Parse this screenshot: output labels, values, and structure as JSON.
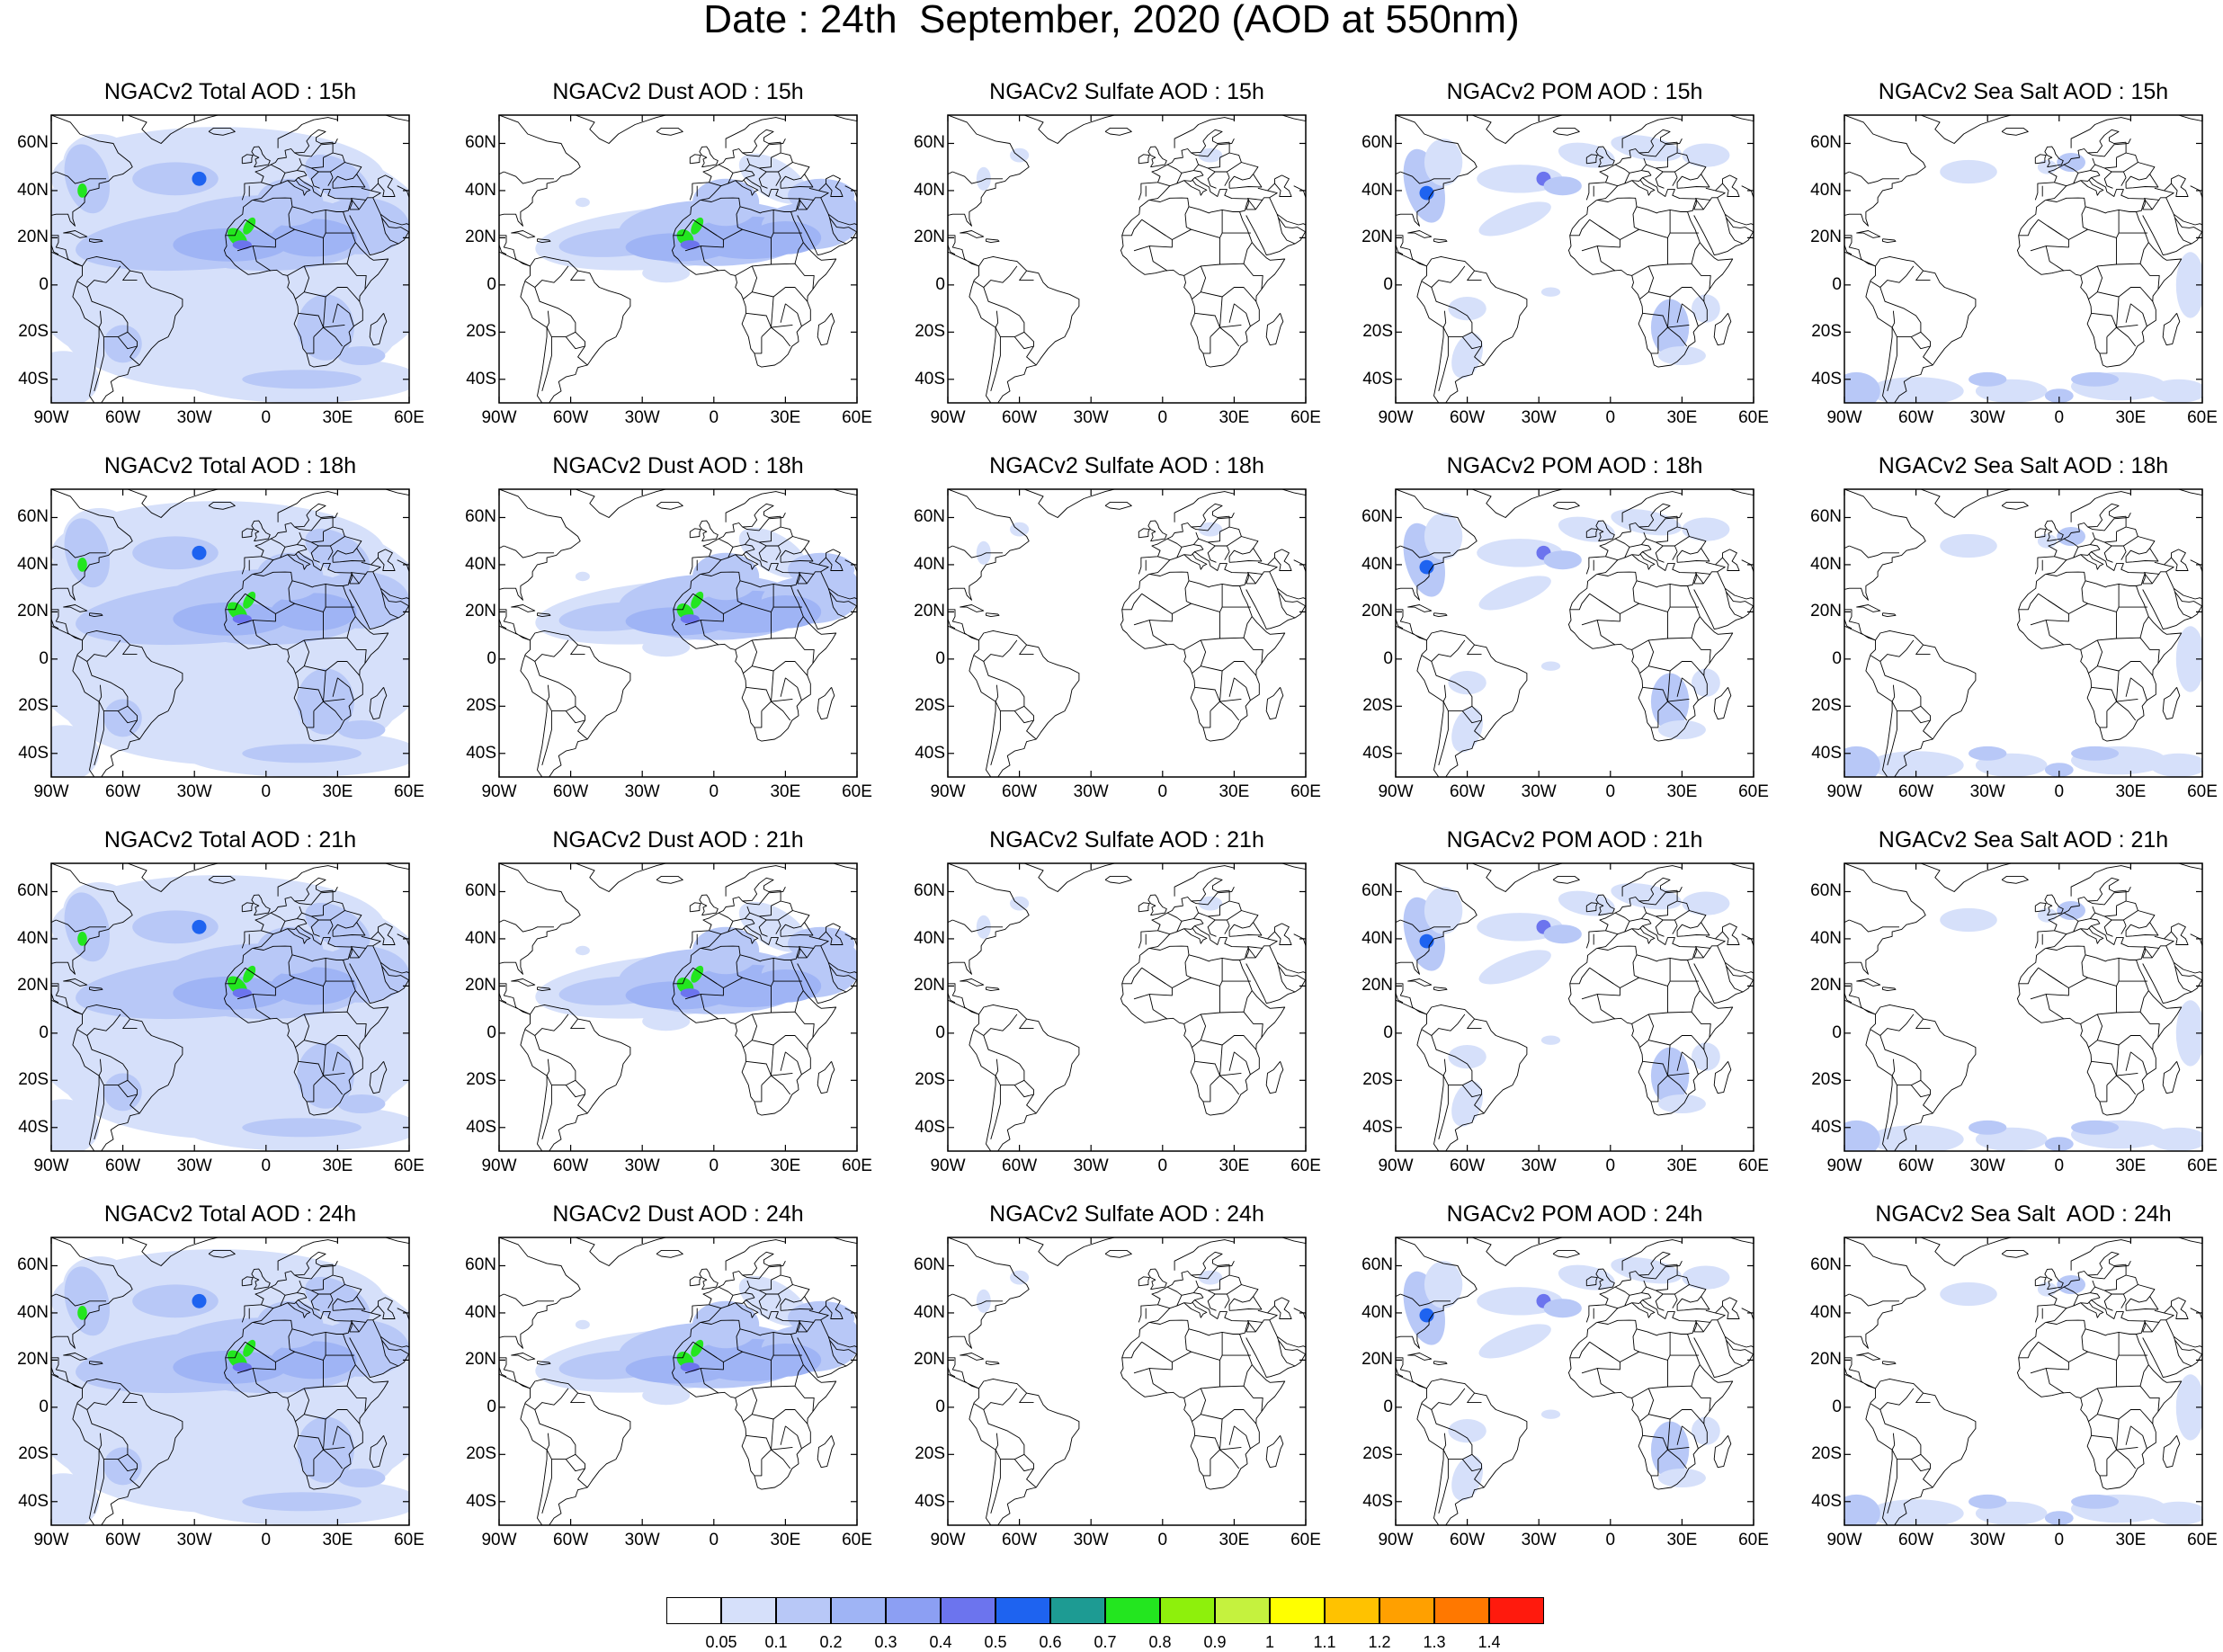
{
  "title": "Date : 24th  September, 2020 (AOD at 550nm)",
  "lat_ticks": [
    "60N",
    "40N",
    "20N",
    "0",
    "20S",
    "40S"
  ],
  "lon_ticks": [
    "90W",
    "60W",
    "30W",
    "0",
    "30E",
    "60E"
  ],
  "rows": [
    {
      "panels": [
        {
          "title": "NGACv2 Total AOD : 15h",
          "species": "total"
        },
        {
          "title": "NGACv2 Dust AOD : 15h",
          "species": "dust"
        },
        {
          "title": "NGACv2 Sulfate AOD : 15h",
          "species": "sulfate"
        },
        {
          "title": "NGACv2 POM AOD : 15h",
          "species": "pom"
        },
        {
          "title": "NGACv2 Sea Salt AOD : 15h",
          "species": "seasalt"
        }
      ]
    },
    {
      "panels": [
        {
          "title": "NGACv2 Total AOD : 18h",
          "species": "total"
        },
        {
          "title": "NGACv2 Dust AOD : 18h",
          "species": "dust"
        },
        {
          "title": "NGACv2 Sulfate AOD : 18h",
          "species": "sulfate"
        },
        {
          "title": "NGACv2 POM AOD : 18h",
          "species": "pom"
        },
        {
          "title": "NGACv2 Sea Salt AOD : 18h",
          "species": "seasalt"
        }
      ]
    },
    {
      "panels": [
        {
          "title": "NGACv2 Total AOD : 21h",
          "species": "total"
        },
        {
          "title": "NGACv2 Dust AOD : 21h",
          "species": "dust"
        },
        {
          "title": "NGACv2 Sulfate AOD : 21h",
          "species": "sulfate"
        },
        {
          "title": "NGACv2 POM AOD : 21h",
          "species": "pom"
        },
        {
          "title": "NGACv2 Sea Salt AOD : 21h",
          "species": "seasalt"
        }
      ]
    },
    {
      "panels": [
        {
          "title": "NGACv2 Total AOD : 24h",
          "species": "total"
        },
        {
          "title": "NGACv2 Dust AOD : 24h",
          "species": "dust"
        },
        {
          "title": "NGACv2 Sulfate AOD : 24h",
          "species": "sulfate"
        },
        {
          "title": "NGACv2 POM AOD : 24h",
          "species": "pom"
        },
        {
          "title": "NGACv2 Sea Salt  AOD : 24h",
          "species": "seasalt"
        }
      ]
    }
  ],
  "colorbar": {
    "labels": [
      "0.05",
      "0.1",
      "0.2",
      "0.3",
      "0.4",
      "0.5",
      "0.6",
      "0.7",
      "0.8",
      "0.9",
      "1",
      "1.1",
      "1.2",
      "1.3",
      "1.4"
    ],
    "colors": [
      "#ffffff",
      "#d6e0fa",
      "#b8c8f7",
      "#9fb4f5",
      "#8c9ff3",
      "#6c74ee",
      "#1e63f0",
      "#1d9b93",
      "#23e61f",
      "#8ef00c",
      "#c5f23e",
      "#ffff00",
      "#ffc200",
      "#ffa000",
      "#ff7800",
      "#ff1a0d"
    ]
  }
}
